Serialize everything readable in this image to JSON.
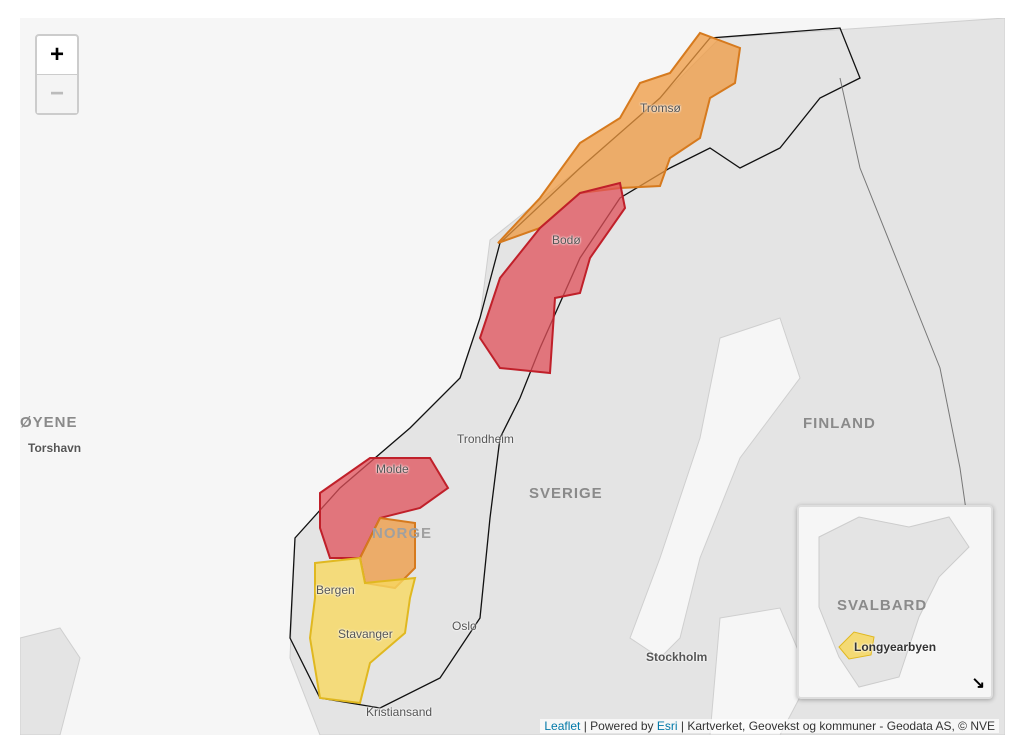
{
  "zoom_controls": {
    "zoom_in": "+",
    "zoom_out": "−"
  },
  "places": {
    "tromso": "Tromsø",
    "bodo": "Bodø",
    "trondheim": "Trondheim",
    "molde": "Molde",
    "bergen": "Bergen",
    "stavanger": "Stavanger",
    "kristiansand": "Kristiansand",
    "oslo": "Oslo",
    "stockholm": "Stockholm",
    "torshavn": "Torshavn"
  },
  "countries": {
    "sverige": "SVERIGE",
    "finland": "FINLAND",
    "norge": "NORGE",
    "faroe": "ØYENE"
  },
  "minimap": {
    "region": "SVALBARD",
    "place": "Longyearbyen",
    "toggle_icon": "arrow-down-right-icon"
  },
  "attribution": {
    "leaflet": "Leaflet",
    "sep1": " | Powered by ",
    "esri": "Esri",
    "rest": " | Kartverket, Geovekst og kommuner - Geodata AS, © NVE"
  },
  "colors": {
    "red": "#e0505a",
    "orange": "#ef9a40",
    "yellow": "#f7d860",
    "land": "#e4e4e4",
    "sea": "#f6f6f6"
  }
}
